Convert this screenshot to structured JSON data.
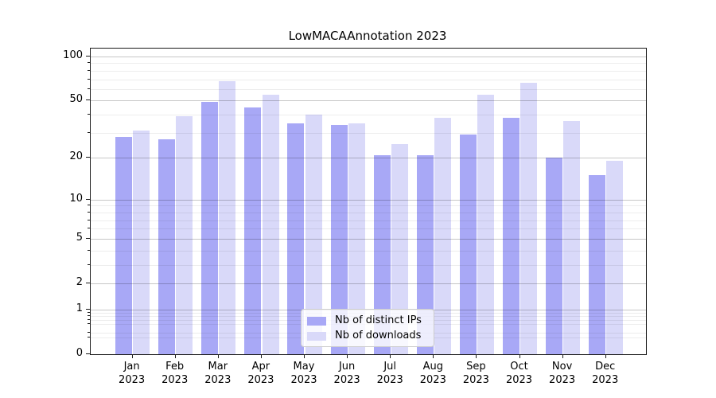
{
  "chart_data": {
    "type": "bar",
    "title": "LowMACAAnnotation 2023",
    "categories": [
      "Jan 2023",
      "Feb 2023",
      "Mar 2023",
      "Apr 2023",
      "May 2023",
      "Jun 2023",
      "Jul 2023",
      "Aug 2023",
      "Sep 2023",
      "Oct 2023",
      "Nov 2023",
      "Dec 2023"
    ],
    "months": [
      "Jan",
      "Feb",
      "Mar",
      "Apr",
      "May",
      "Jun",
      "Jul",
      "Aug",
      "Sep",
      "Oct",
      "Nov",
      "Dec"
    ],
    "year": "2023",
    "series": [
      {
        "name": "Nb of distinct IPs",
        "color": "#a8a8f6",
        "values": [
          28,
          27,
          49,
          45,
          35,
          34,
          21,
          21,
          29,
          38,
          20,
          15
        ]
      },
      {
        "name": "Nb of downloads",
        "color": "#d9d9f9",
        "values": [
          31,
          39,
          68,
          55,
          40,
          35,
          25,
          38,
          55,
          66,
          36,
          19
        ]
      }
    ],
    "xlabel": "",
    "ylabel": "",
    "yscale": "log1p",
    "ylim": [
      0,
      113
    ],
    "yticks": [
      100,
      50,
      20,
      10,
      5,
      2,
      1,
      0
    ],
    "minor_yticks": [
      0.3,
      0.4,
      0.6,
      0.7,
      0.8,
      0.9,
      3,
      4,
      6,
      7,
      8,
      9,
      30,
      40,
      60,
      70,
      80,
      90
    ],
    "grid": true,
    "legend_position": "lower center"
  }
}
